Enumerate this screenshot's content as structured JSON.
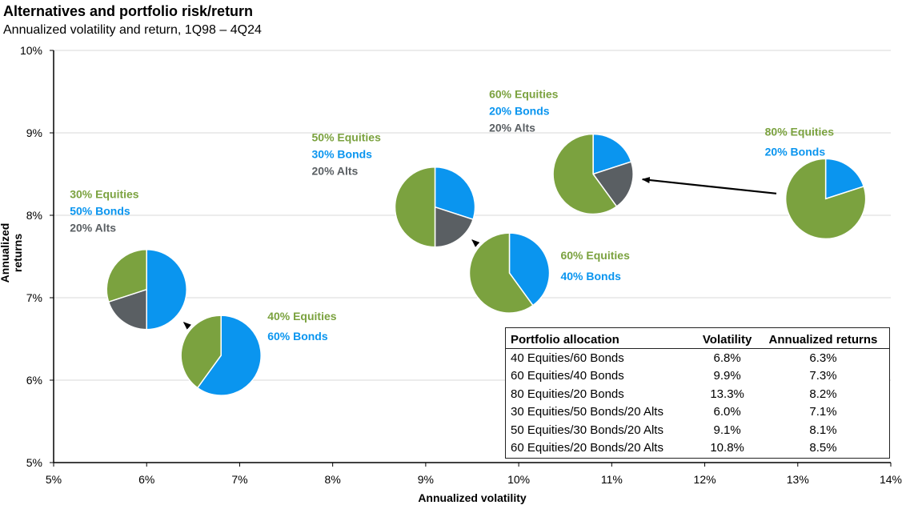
{
  "title": "Alternatives and portfolio risk/return",
  "subtitle": "Annualized volatility and return, 1Q98 – 4Q24",
  "colors": {
    "equities": "#7BA23F",
    "bonds": "#0A95EF",
    "alts": "#5A5F63",
    "grid": "#d9d9d9",
    "axis": "#000000"
  },
  "chart_data": {
    "type": "scatter",
    "xlabel": "Annualized volatility",
    "ylabel": "Annualized returns",
    "xlim": [
      5,
      14
    ],
    "ylim": [
      5,
      10
    ],
    "x_ticks": [
      "5%",
      "6%",
      "7%",
      "8%",
      "9%",
      "10%",
      "11%",
      "12%",
      "13%",
      "14%"
    ],
    "y_ticks": [
      "5%",
      "6%",
      "7%",
      "8%",
      "9%",
      "10%"
    ],
    "grid": "horizontal",
    "points": [
      {
        "name": "40 Equities/60 Bonds",
        "x": 6.8,
        "y": 6.3,
        "equities": 40,
        "bonds": 60,
        "alts": 0,
        "labels": [
          "40% Equities",
          "60% Bonds"
        ]
      },
      {
        "name": "60 Equities/40 Bonds",
        "x": 9.9,
        "y": 7.3,
        "equities": 60,
        "bonds": 40,
        "alts": 0,
        "labels": [
          "60% Equities",
          "40% Bonds"
        ]
      },
      {
        "name": "80 Equities/20 Bonds",
        "x": 13.3,
        "y": 8.2,
        "equities": 80,
        "bonds": 20,
        "alts": 0,
        "labels": [
          "80% Equities",
          "20% Bonds"
        ]
      },
      {
        "name": "30 Equities/50 Bonds/20 Alts",
        "x": 6.0,
        "y": 7.1,
        "equities": 30,
        "bonds": 50,
        "alts": 20,
        "labels": [
          "30% Equities",
          "50% Bonds",
          "20% Alts"
        ]
      },
      {
        "name": "50 Equities/30 Bonds/20 Alts",
        "x": 9.1,
        "y": 8.1,
        "equities": 50,
        "bonds": 30,
        "alts": 20,
        "labels": [
          "50% Equities",
          "30% Bonds",
          "20% Alts"
        ]
      },
      {
        "name": "60 Equities/20 Bonds/20 Alts",
        "x": 10.8,
        "y": 8.5,
        "equities": 60,
        "bonds": 20,
        "alts": 20,
        "labels": [
          "60% Equities",
          "20% Bonds",
          "20% Alts"
        ]
      }
    ],
    "arrows": [
      {
        "from": "40 Equities/60 Bonds",
        "to": "30 Equities/50 Bonds/20 Alts"
      },
      {
        "from": "60 Equities/40 Bonds",
        "to": "50 Equities/30 Bonds/20 Alts"
      },
      {
        "from": "80 Equities/20 Bonds",
        "to": "60 Equities/20 Bonds/20 Alts"
      }
    ]
  },
  "table": {
    "headers": [
      "Portfolio allocation",
      "Volatility",
      "Annualized returns"
    ],
    "rows": [
      [
        "40 Equities/60 Bonds",
        "6.8%",
        "6.3%"
      ],
      [
        "60 Equities/40 Bonds",
        "9.9%",
        "7.3%"
      ],
      [
        "80 Equities/20 Bonds",
        "13.3%",
        "8.2%"
      ],
      [
        "30 Equities/50 Bonds/20 Alts",
        "6.0%",
        "7.1%"
      ],
      [
        "50 Equities/30 Bonds/20 Alts",
        "9.1%",
        "8.1%"
      ],
      [
        "60 Equities/20 Bonds/20 Alts",
        "10.8%",
        "8.5%"
      ]
    ]
  }
}
